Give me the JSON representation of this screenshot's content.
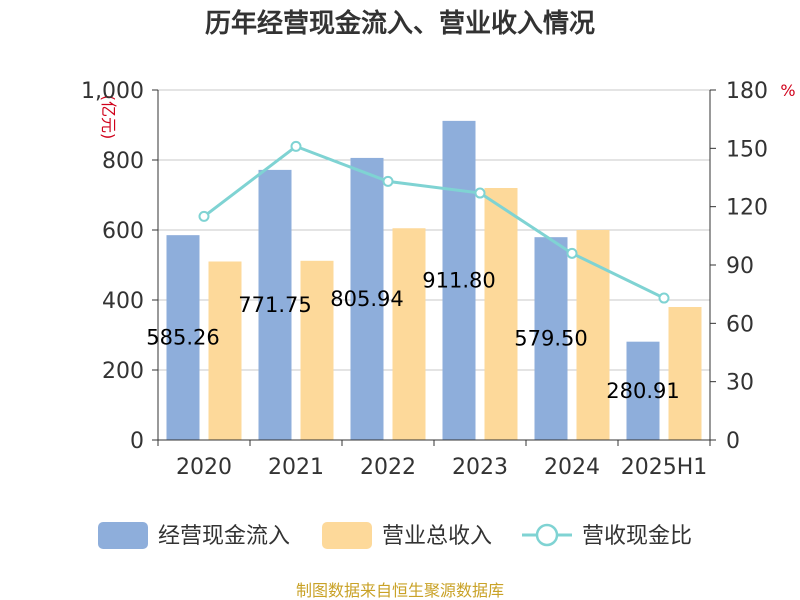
{
  "chart_data": {
    "type": "bar",
    "title": "历年经营现金流入、营业收入情况",
    "categories": [
      "2020",
      "2021",
      "2022",
      "2023",
      "2024",
      "2025H1"
    ],
    "y_left": {
      "unit": "(亿元)",
      "ylim": [
        0,
        1000
      ],
      "ticks": [
        "0",
        "200",
        "400",
        "600",
        "800",
        "1,000"
      ],
      "tick_values": [
        0,
        200,
        400,
        600,
        800,
        1000
      ]
    },
    "y_right": {
      "unit": "%",
      "ylim": [
        0,
        180
      ],
      "ticks": [
        "0",
        "30",
        "60",
        "90",
        "120",
        "150",
        "180"
      ],
      "tick_values": [
        0,
        30,
        60,
        90,
        120,
        150,
        180
      ]
    },
    "series": [
      {
        "name": "经营现金流入",
        "kind": "bar",
        "axis": "left",
        "color": "#8eaedb",
        "values": [
          585.26,
          771.75,
          805.94,
          911.8,
          579.5,
          280.91
        ],
        "labels": [
          "585.26",
          "771.75",
          "805.94",
          "911.80",
          "579.50",
          "280.91"
        ]
      },
      {
        "name": "营业总收入",
        "kind": "bar",
        "axis": "left",
        "color": "#fdd99a",
        "values": [
          510,
          512,
          605,
          720,
          600,
          380
        ]
      },
      {
        "name": "营收现金比",
        "kind": "line",
        "axis": "right",
        "color": "#7fd3d3",
        "values": [
          115,
          151,
          133,
          127,
          96,
          73
        ]
      }
    ],
    "grid": true,
    "legend": "bottom"
  },
  "footer": {
    "source": "制图数据来自恒生聚源数据库"
  }
}
